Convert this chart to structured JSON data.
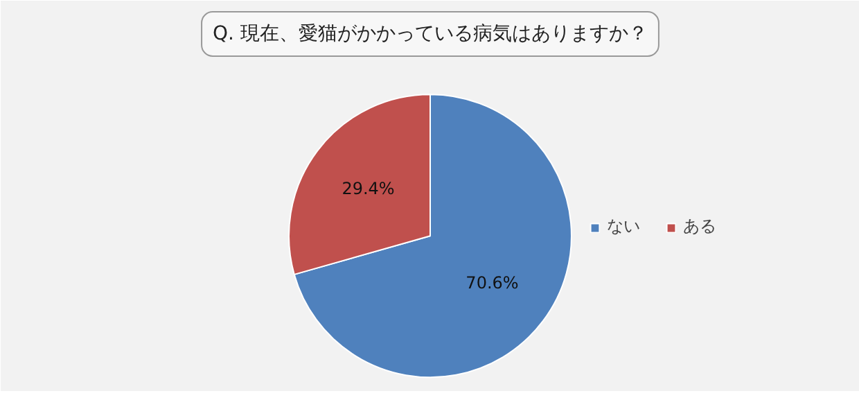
{
  "chart_data": {
    "type": "pie",
    "title": "Q. 現在、愛猫がかかっている病気はありますか？",
    "categories": [
      "ない",
      "ある"
    ],
    "values": [
      70.6,
      29.4
    ],
    "colors": [
      "#4f81bd",
      "#c0504d"
    ],
    "value_labels": [
      "70.6%",
      "29.4%"
    ],
    "legend": "right"
  }
}
